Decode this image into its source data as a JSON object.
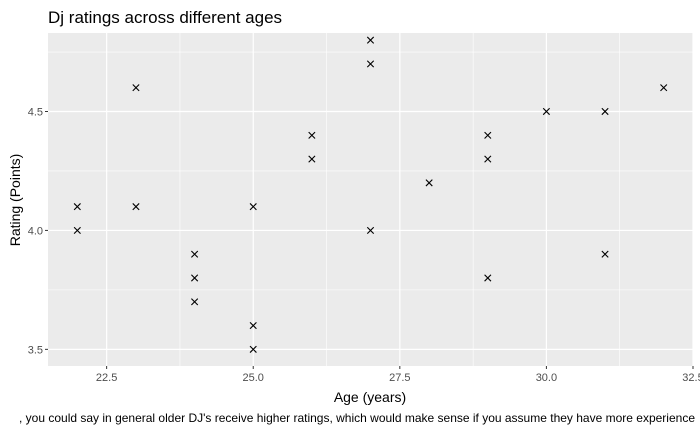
{
  "chart_data": {
    "type": "scatter",
    "title": "Dj ratings across different ages",
    "xlabel": "Age (years)",
    "ylabel": "Rating (Points)",
    "caption": ", you could say in general older DJ's receive higher ratings, which would make sense if you assume they have more experience",
    "xlim": [
      21.5,
      32.5
    ],
    "ylim": [
      3.43,
      4.83
    ],
    "x_ticks": [
      22.5,
      25.0,
      27.5,
      30.0,
      32.5
    ],
    "x_tick_labels": [
      "22.5",
      "25.0",
      "27.5",
      "30.0",
      "32.5"
    ],
    "y_ticks": [
      3.5,
      4.0,
      4.5
    ],
    "y_tick_labels": [
      "3.5",
      "4.0",
      "4.5"
    ],
    "grid": true,
    "marker": "x",
    "colors": {
      "panel": "#ebebeb",
      "grid_major": "#ffffff",
      "marker": "#000000"
    },
    "points": [
      {
        "x": 22,
        "y": 4.1
      },
      {
        "x": 22,
        "y": 4.0
      },
      {
        "x": 23,
        "y": 4.6
      },
      {
        "x": 23,
        "y": 4.1
      },
      {
        "x": 24,
        "y": 3.9
      },
      {
        "x": 24,
        "y": 3.8
      },
      {
        "x": 24,
        "y": 3.7
      },
      {
        "x": 25,
        "y": 4.1
      },
      {
        "x": 25,
        "y": 3.6
      },
      {
        "x": 25,
        "y": 3.5
      },
      {
        "x": 26,
        "y": 4.4
      },
      {
        "x": 26,
        "y": 4.3
      },
      {
        "x": 27,
        "y": 4.8
      },
      {
        "x": 27,
        "y": 4.7
      },
      {
        "x": 27,
        "y": 4.0
      },
      {
        "x": 28,
        "y": 4.2
      },
      {
        "x": 29,
        "y": 4.4
      },
      {
        "x": 29,
        "y": 4.3
      },
      {
        "x": 29,
        "y": 3.8
      },
      {
        "x": 30,
        "y": 4.5
      },
      {
        "x": 31,
        "y": 4.5
      },
      {
        "x": 31,
        "y": 3.9
      },
      {
        "x": 32,
        "y": 4.6
      }
    ]
  }
}
